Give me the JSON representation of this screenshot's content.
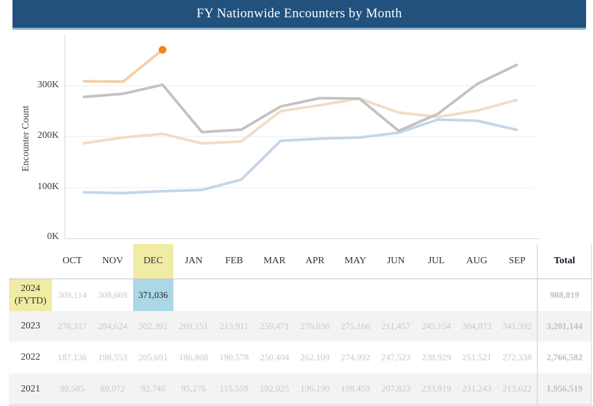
{
  "header": {
    "title": "FY Nationwide Encounters by Month",
    "bar_color": "#21517c",
    "accent_line_color": "#8fb3d2"
  },
  "chart_data": {
    "type": "line",
    "x": [
      "OCT",
      "NOV",
      "DEC",
      "JAN",
      "FEB",
      "MAR",
      "APR",
      "MAY",
      "JUN",
      "JUL",
      "AUG",
      "SEP"
    ],
    "title": "FY Nationwide Encounters by Month",
    "xlabel": "",
    "ylabel": "Encounter Count",
    "yticks": [
      "0K",
      "100K",
      "200K",
      "300K"
    ],
    "ytick_values": [
      0,
      100000,
      200000,
      300000
    ],
    "ylim": [
      0,
      400000
    ],
    "grid": true,
    "legend": "none",
    "series": [
      {
        "name": "2021",
        "color": "#c3d6e8",
        "marker": "none",
        "values": [
          90585,
          89072,
          92746,
          95276,
          115559,
          192025,
          196190,
          198459,
          207823,
          233919,
          231243,
          213622
        ]
      },
      {
        "name": "2022",
        "color": "#f2dcc3",
        "marker": "none",
        "values": [
          187136,
          198553,
          205691,
          186808,
          190578,
          250404,
          262109,
          274992,
          247523,
          238929,
          251521,
          272338
        ]
      },
      {
        "name": "2023",
        "color": "#c2c2c2",
        "marker": "none",
        "values": [
          278317,
          284624,
          302392,
          209151,
          213911,
          259471,
          276036,
          275166,
          211457,
          245154,
          304073,
          341392
        ]
      },
      {
        "name": "2024 (FYTD)",
        "color": "#f6cda3",
        "marker": "last",
        "marker_color": "#f5821f",
        "values": [
          309114,
          308669,
          371036
        ]
      }
    ],
    "annotation": "Highlighted point: DEC 2024 = 371,036"
  },
  "table": {
    "columns": [
      "OCT",
      "NOV",
      "DEC",
      "JAN",
      "FEB",
      "MAR",
      "APR",
      "MAY",
      "JUN",
      "JUL",
      "AUG",
      "SEP"
    ],
    "total_label": "Total",
    "highlighted_column": "DEC",
    "highlight_yellow": "#f0eca4",
    "highlight_blue": "#abd7e6",
    "rows": [
      {
        "label": "2024 (FYTD)",
        "values": [
          "309,114",
          "308,669",
          "371,036",
          "",
          "",
          "",
          "",
          "",
          "",
          "",
          "",
          ""
        ],
        "total": "988,819"
      },
      {
        "label": "2023",
        "values": [
          "278,317",
          "284,624",
          "302,392",
          "209,151",
          "213,911",
          "259,471",
          "276,036",
          "275,166",
          "211,457",
          "245,154",
          "304,073",
          "341,392"
        ],
        "total": "3,201,144"
      },
      {
        "label": "2022",
        "values": [
          "187,136",
          "198,553",
          "205,691",
          "186,808",
          "190,578",
          "250,404",
          "262,109",
          "274,992",
          "247,523",
          "238,929",
          "251,521",
          "272,338"
        ],
        "total": "2,766,582"
      },
      {
        "label": "2021",
        "values": [
          "90,585",
          "89,072",
          "92,746",
          "95,276",
          "115,559",
          "192,025",
          "196,190",
          "198,459",
          "207,823",
          "233,919",
          "231,243",
          "213,622"
        ],
        "total": "1,956,519"
      }
    ]
  }
}
